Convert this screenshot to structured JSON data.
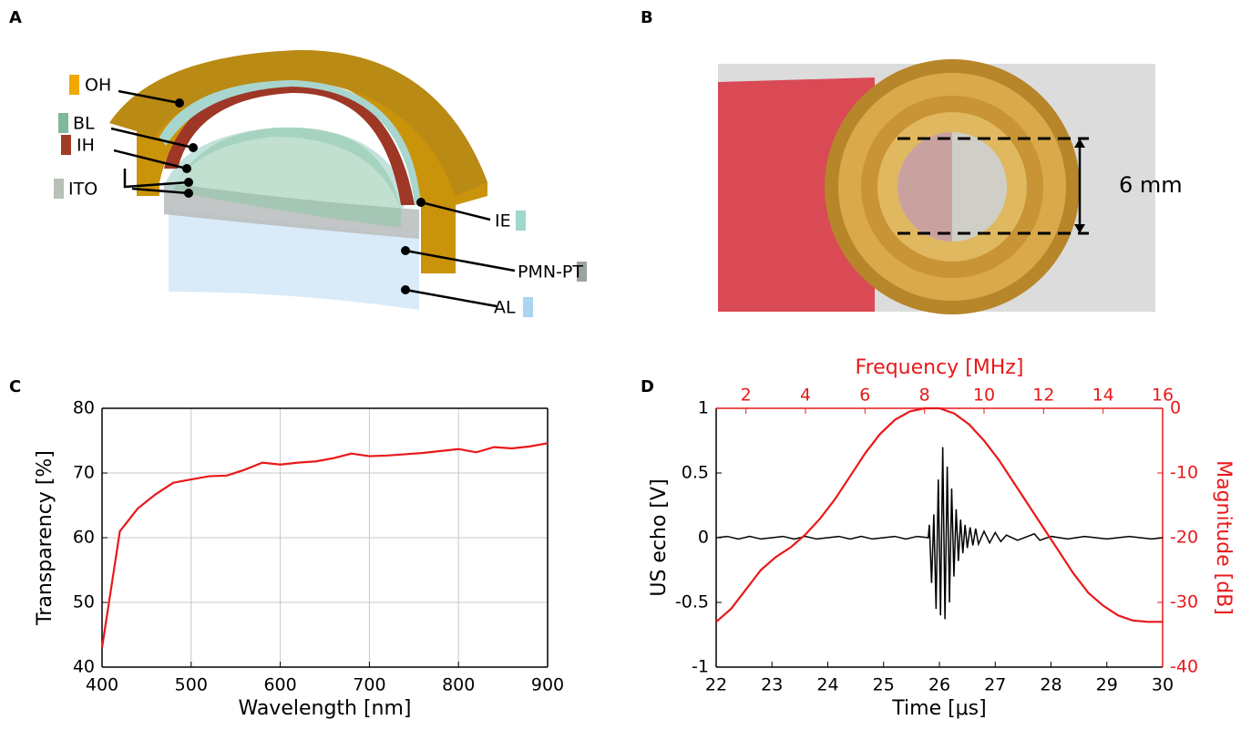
{
  "panel_labels": [
    "A",
    "B",
    "C",
    "D"
  ],
  "diagram": {
    "labels": [
      "OH",
      "BL",
      "IH",
      "ITO",
      "IE",
      "PMN-PT",
      "AL"
    ]
  },
  "photo": {
    "annotation": "6 mm"
  },
  "chart_data": [
    {
      "type": "line",
      "xlabel": "Wavelength [nm]",
      "ylabel": "Transparency [%]",
      "x": [
        400,
        420,
        440,
        460,
        480,
        500,
        520,
        540,
        560,
        580,
        600,
        620,
        640,
        660,
        680,
        700,
        720,
        740,
        760,
        780,
        800,
        820,
        840,
        860,
        880,
        900
      ],
      "values": [
        43,
        61,
        64.5,
        66.7,
        68.5,
        69,
        69.5,
        69.6,
        70.5,
        71.6,
        71.3,
        71.6,
        71.8,
        72.3,
        73,
        72.6,
        72.7,
        72.9,
        73.1,
        73.4,
        73.7,
        73.2,
        74,
        73.8,
        74.1,
        74.6
      ],
      "color": "#e8191a",
      "xlim": [
        400,
        900
      ],
      "xticks": [
        400,
        500,
        600,
        700,
        800,
        900
      ],
      "ylim": [
        40,
        80
      ],
      "yticks": [
        40,
        50,
        60,
        70,
        80
      ],
      "grid": true
    },
    {
      "type": "line",
      "xlabel": "Time [μs]",
      "ylabel": "US echo [V]",
      "x2label": "Frequency [MHz]",
      "y2label": "Magnitude [dB]",
      "xlim": [
        22,
        30
      ],
      "xticks": [
        22,
        23,
        24,
        25,
        26,
        27,
        28,
        29,
        30
      ],
      "ylim": [
        -1,
        1
      ],
      "yticks": [
        -1,
        -0.5,
        0,
        0.5,
        1
      ],
      "x2lim": [
        1,
        16
      ],
      "x2ticks": [
        2,
        4,
        6,
        8,
        10,
        12,
        14,
        16
      ],
      "y2lim": [
        -40,
        0
      ],
      "y2ticks": [
        -40,
        -30,
        -20,
        -10,
        0
      ],
      "grid": false,
      "series": [
        {
          "color": "#000000",
          "x": [
            22,
            22.2,
            22.4,
            22.6,
            22.8,
            23,
            23.2,
            23.4,
            23.6,
            23.8,
            24,
            24.2,
            24.4,
            24.6,
            24.8,
            25,
            25.2,
            25.4,
            25.6,
            25.8,
            25.82,
            25.86,
            25.9,
            25.94,
            25.98,
            26.02,
            26.06,
            26.1,
            26.14,
            26.18,
            26.22,
            26.26,
            26.3,
            26.34,
            26.38,
            26.42,
            26.46,
            26.5,
            26.55,
            26.6,
            26.65,
            26.7,
            26.8,
            26.9,
            27,
            27.1,
            27.2,
            27.4,
            27.7,
            27.8,
            28,
            28.3,
            28.6,
            29,
            29.4,
            29.8,
            30
          ],
          "values": [
            0,
            0.01,
            -0.01,
            0.01,
            -0.01,
            0,
            0.01,
            -0.01,
            0.01,
            -0.01,
            0,
            0.01,
            -0.01,
            0.01,
            -0.01,
            0,
            0.01,
            -0.01,
            0.01,
            0,
            0.1,
            -0.35,
            0.18,
            -0.55,
            0.45,
            -0.6,
            0.7,
            -0.63,
            0.55,
            -0.5,
            0.38,
            -0.3,
            0.22,
            -0.18,
            0.14,
            -0.12,
            0.1,
            -0.08,
            0.08,
            -0.06,
            0.07,
            -0.05,
            0.05,
            -0.04,
            0.04,
            -0.03,
            0.02,
            -0.02,
            0.03,
            -0.02,
            0.01,
            -0.01,
            0.01,
            -0.01,
            0.01,
            -0.01,
            0
          ]
        },
        {
          "color": "#e8191a",
          "axis": "y2",
          "x_axis": "x2",
          "x": [
            1,
            1.5,
            2,
            2.5,
            3,
            3.5,
            4,
            4.5,
            5,
            5.5,
            6,
            6.5,
            7,
            7.5,
            8,
            8.5,
            9,
            9.5,
            10,
            10.5,
            11,
            11.5,
            12,
            12.5,
            13,
            13.5,
            14,
            14.5,
            15,
            15.5,
            16
          ],
          "values": [
            -33,
            -31,
            -28,
            -25,
            -23,
            -21.5,
            -19.5,
            -17,
            -14,
            -10.5,
            -7,
            -4,
            -1.8,
            -0.5,
            0,
            0,
            -0.8,
            -2.5,
            -5,
            -8,
            -11.5,
            -15,
            -18.5,
            -22,
            -25.5,
            -28.5,
            -30.5,
            -32,
            -32.8,
            -33,
            -33
          ]
        }
      ]
    }
  ]
}
